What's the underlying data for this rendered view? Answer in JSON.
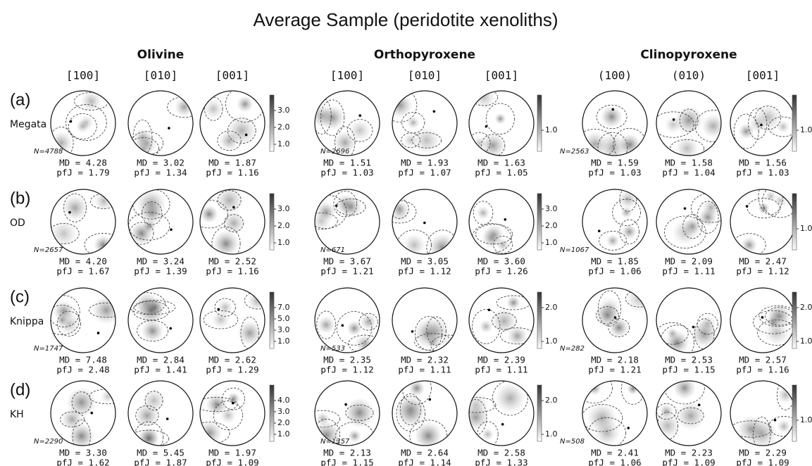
{
  "title": "Average Sample (peridotite xenoliths)",
  "minerals": [
    {
      "name": "Olivine",
      "axes": [
        "[100]",
        "[010]",
        "[001]"
      ]
    },
    {
      "name": "Orthopyroxene",
      "axes": [
        "[100]",
        "[010]",
        "[001]"
      ]
    },
    {
      "name": "Clinopyroxene",
      "axes": [
        "(100)",
        "(010)",
        "[001]"
      ]
    }
  ],
  "rows": [
    {
      "label": "(a)",
      "site": "Megata",
      "panels": [
        {
          "n": "N=4788",
          "scale": [
            "3.0",
            "2.0",
            "1.0"
          ],
          "stats": [
            [
              "MD = 4.28",
              "pfJ = 1.79"
            ],
            [
              "MD = 3.02",
              "pfJ = 1.34"
            ],
            [
              "MD = 1.87",
              "pfJ = 1.16"
            ]
          ]
        },
        {
          "n": "N=2696",
          "scale": [
            "1.0"
          ],
          "stats": [
            [
              "MD = 1.51",
              "pfJ = 1.03"
            ],
            [
              "MD = 1.93",
              "pfJ = 1.07"
            ],
            [
              "MD = 1.63",
              "pfJ = 1.05"
            ]
          ]
        },
        {
          "n": "N=2563",
          "scale": [
            "1.0"
          ],
          "stats": [
            [
              "MD = 1.59",
              "pfJ = 1.03"
            ],
            [
              "MD = 1.58",
              "pfJ = 1.04"
            ],
            [
              "MD = 1.56",
              "pfJ = 1.03"
            ]
          ]
        }
      ]
    },
    {
      "label": "(b)",
      "site": "OD",
      "panels": [
        {
          "n": "N=2657",
          "scale": [
            "3.0",
            "2.0",
            "1.0"
          ],
          "stats": [
            [
              "MD = 4.20",
              "pfJ = 1.67"
            ],
            [
              "MD = 3.24",
              "pfJ = 1.39"
            ],
            [
              "MD = 2.52",
              "pfJ = 1.16"
            ]
          ]
        },
        {
          "n": "N=671",
          "scale": [
            "3.0",
            "2.0",
            "1.0"
          ],
          "stats": [
            [
              "MD = 3.67",
              "pfJ = 1.21"
            ],
            [
              "MD = 3.05",
              "pfJ = 1.12"
            ],
            [
              "MD = 3.60",
              "pfJ = 1.26"
            ]
          ]
        },
        {
          "n": "N=1067",
          "scale": [
            "1.0"
          ],
          "stats": [
            [
              "MD = 1.85",
              "pfJ = 1.06"
            ],
            [
              "MD = 2.09",
              "pfJ = 1.11"
            ],
            [
              "MD = 2.47",
              "pfJ = 1.12"
            ]
          ]
        }
      ]
    },
    {
      "label": "(c)",
      "site": "Knippa",
      "panels": [
        {
          "n": "N=1747",
          "scale": [
            "7.0",
            "5.0",
            "3.0",
            "1.0"
          ],
          "stats": [
            [
              "MD = 7.48",
              "pfJ = 2.48"
            ],
            [
              "MD = 2.84",
              "pfJ = 1.41"
            ],
            [
              "MD = 2.62",
              "pfJ = 1.29"
            ]
          ]
        },
        {
          "n": "N=533",
          "scale": [
            "2.0",
            "1.0"
          ],
          "stats": [
            [
              "MD = 2.35",
              "pfJ = 1.12"
            ],
            [
              "MD = 2.32",
              "pfJ = 1.11"
            ],
            [
              "MD = 2.39",
              "pfJ = 1.11"
            ]
          ]
        },
        {
          "n": "N=282",
          "scale": [
            "2.0",
            "1.0"
          ],
          "stats": [
            [
              "MD = 2.18",
              "pfJ = 1.21"
            ],
            [
              "MD = 2.53",
              "pfJ = 1.15"
            ],
            [
              "MD = 2.57",
              "pfJ = 1.16"
            ]
          ]
        }
      ]
    },
    {
      "label": "(d)",
      "site": "KH",
      "panels": [
        {
          "n": "N=2290",
          "scale": [
            "4.0",
            "3.0",
            "2.0",
            "1.0"
          ],
          "stats": [
            [
              "MD = 3.30",
              "pfJ = 1.62"
            ],
            [
              "MD = 5.45",
              "pfJ = 1.87"
            ],
            [
              "MD = 1.97",
              "pfJ = 1.09"
            ]
          ]
        },
        {
          "n": "N=1357",
          "scale": [
            "2.0",
            "1.0"
          ],
          "stats": [
            [
              "MD = 2.13",
              "pfJ = 1.15"
            ],
            [
              "MD = 2.64",
              "pfJ = 1.14"
            ],
            [
              "MD = 2.58",
              "pfJ = 1.33"
            ]
          ]
        },
        {
          "n": "N=508",
          "scale": [
            "1.0"
          ],
          "stats": [
            [
              "MD = 2.41",
              "pfJ = 1.06"
            ],
            [
              "MD = 2.23",
              "pfJ = 1.09"
            ],
            [
              "MD = 2.29",
              "pfJ = 1.09"
            ]
          ]
        }
      ]
    }
  ]
}
